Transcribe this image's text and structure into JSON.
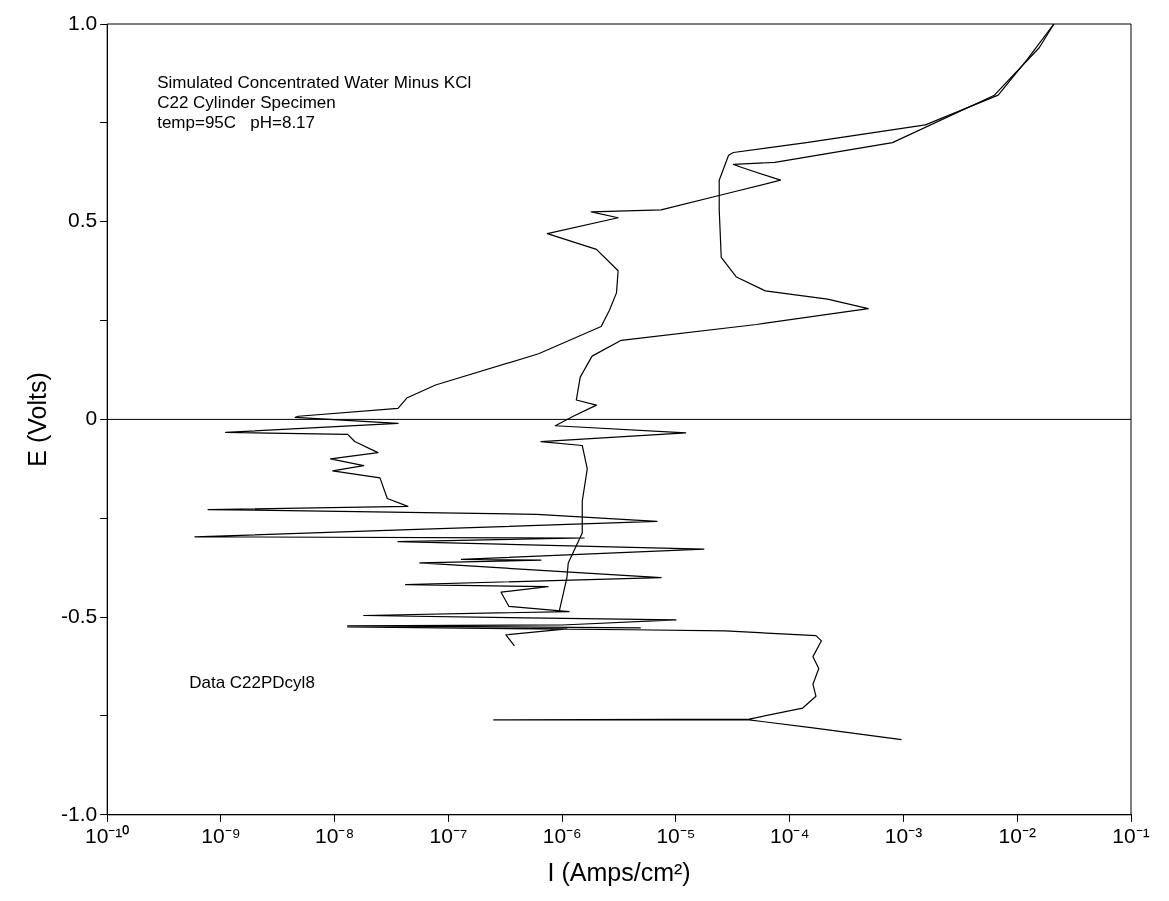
{
  "chart_data": {
    "type": "line",
    "xlabel": "I (Amps/cm²)",
    "ylabel": "E (Volts)",
    "log": "x",
    "annotations": [
      "Simulated Concentrated Water Minus KCl",
      "C22 Cylinder Specimen",
      "temp=95C   pH=8.17",
      "Data C22PDcyl8"
    ],
    "xlim": [
      1e-10,
      0.1
    ],
    "ylim": [
      -1,
      1
    ],
    "xticks": [
      {
        "value": 1e-10,
        "label": "10⁻¹⁰"
      },
      {
        "value": 1e-09,
        "label": "10⁻⁹"
      },
      {
        "value": 1e-08,
        "label": "10⁻⁸"
      },
      {
        "value": 1e-07,
        "label": "10⁻⁷"
      },
      {
        "value": 1e-06,
        "label": "10⁻⁶"
      },
      {
        "value": 1e-05,
        "label": "10⁻⁵"
      },
      {
        "value": 0.0001,
        "label": "10⁻⁴"
      },
      {
        "value": 0.001,
        "label": "10⁻³"
      },
      {
        "value": 0.01,
        "label": "10⁻²"
      },
      {
        "value": 0.1,
        "label": "10⁻¹"
      }
    ],
    "yticks": [
      {
        "value": -1,
        "label": "-1.0"
      },
      {
        "value": -0.75,
        "label": null
      },
      -0.5,
      {
        "value": -0.25,
        "label": null
      },
      0,
      {
        "value": 0.25,
        "label": null
      },
      0.5,
      {
        "value": 0.75,
        "label": null
      },
      {
        "value": 1,
        "label": "1.0"
      }
    ],
    "ref_lines": [
      {
        "axis": "y",
        "value": 0,
        "color": "#000000"
      }
    ],
    "series": [
      {
        "color": "#000000",
        "x": [
          0.00096,
          0.00016,
          4.4e-05,
          2.5e-07,
          4.4e-05,
          0.00013,
          0.00017,
          0.00016,
          0.00018,
          0.00016,
          0.00019,
          0.00017,
          2.7e-05,
          4e-06,
          1.3e-08,
          1.1e-06,
          3.2e-07,
          3.8e-07
        ],
        "values": [
          -0.81,
          -0.78,
          -0.76,
          -0.76,
          -0.758,
          -0.73,
          -0.7,
          -0.67,
          -0.63,
          -0.6,
          -0.56,
          -0.547,
          -0.535,
          -0.532,
          -0.525,
          -0.53,
          -0.545,
          -0.573
        ]
      },
      {
        "color": "#000000",
        "x": [
          9.4e-07,
          1.1e-06,
          1.13e-06,
          1.5e-06,
          1.5e-06,
          1.66e-06,
          1.5e-06,
          6.5e-07,
          1.22e-05,
          8.7e-07,
          1.25e-06,
          2e-06,
          1.33e-06,
          1.44e-06,
          1.83e-06,
          3.3e-06,
          5.1e-05,
          0.00049,
          0.000215,
          6.1e-05,
          3.4e-05,
          2.5e-05,
          2.4e-05,
          2.4e-05,
          2.9e-05,
          3.2e-05,
          0.00014,
          0.00156,
          0.0068,
          0.0122,
          0.021
        ],
        "values": [
          -0.486,
          -0.4,
          -0.363,
          -0.287,
          -0.207,
          -0.125,
          -0.066,
          -0.056,
          -0.034,
          -0.016,
          0.008,
          0.036,
          0.049,
          0.107,
          0.16,
          0.2,
          0.24,
          0.28,
          0.304,
          0.325,
          0.36,
          0.41,
          0.53,
          0.605,
          0.668,
          0.675,
          0.7,
          0.745,
          0.82,
          0.91,
          1.0
        ]
      },
      {
        "color": "#000000",
        "x": [
          0.021,
          0.0156,
          0.0063,
          0.0008,
          7.4e-05,
          3.2e-05,
          3.8e-05,
          8.3e-05,
          2.7e-05,
          7.4e-06,
          1.8e-06,
          3.1e-06,
          7.4e-07,
          2e-06,
          3.1e-06,
          3e-06,
          2.6e-06,
          2.2e-06,
          6.2e-07,
          7.7e-08,
          4.3e-08,
          3.6e-08,
          4.8e-09,
          4.5e-09,
          3.6e-08,
          1.1e-09,
          1.3e-08,
          1.5e-08,
          2.4e-08,
          9.2e-09,
          1.8e-08,
          9.6e-09,
          2.5e-08,
          2.9e-08,
          4.4e-08,
          7.7e-10,
          6e-07,
          6.8e-06,
          4.5e-08,
          5.9e-10,
          1.56e-06,
          3.6e-08,
          1.76e-05,
          1.3e-07,
          6.5e-07,
          5.6e-08,
          7.4e-06,
          4.2e-08,
          7.5e-07,
          2.9e-07,
          3.4e-07,
          1.15e-06,
          1.8e-08,
          1e-05,
          1e-06,
          1.3e-08,
          4.9e-06
        ],
        "values": [
          1.0,
          0.94,
          0.82,
          0.7,
          0.65,
          0.645,
          0.637,
          0.605,
          0.57,
          0.53,
          0.525,
          0.51,
          0.47,
          0.43,
          0.376,
          0.32,
          0.276,
          0.235,
          0.166,
          0.087,
          0.054,
          0.028,
          0.008,
          0.005,
          -0.01,
          -0.033,
          -0.038,
          -0.056,
          -0.084,
          -0.1,
          -0.117,
          -0.13,
          -0.148,
          -0.2,
          -0.22,
          -0.228,
          -0.24,
          -0.258,
          -0.279,
          -0.297,
          -0.3,
          -0.309,
          -0.328,
          -0.354,
          -0.356,
          -0.363,
          -0.4,
          -0.418,
          -0.423,
          -0.437,
          -0.473,
          -0.486,
          -0.496,
          -0.507,
          -0.52,
          -0.522,
          -0.527
        ]
      }
    ]
  }
}
